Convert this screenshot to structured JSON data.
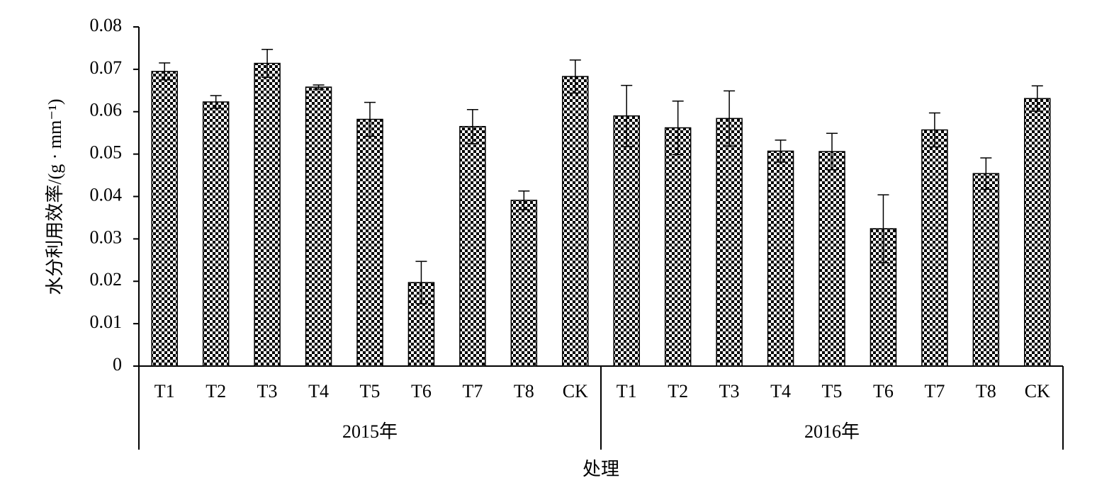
{
  "chart_data": {
    "type": "bar",
    "y_label": "水分利用效率/(g · mm⁻¹)",
    "x_label": "处理",
    "color": "#000000",
    "ylim": [
      0,
      0.08
    ],
    "yticks": [
      0,
      0.01,
      0.02,
      0.03,
      0.04,
      0.05,
      0.06,
      0.07,
      0.08
    ],
    "groups": [
      {
        "name": "2015年",
        "categories": [
          "T1",
          "T2",
          "T3",
          "T4",
          "T5",
          "T6",
          "T7",
          "T8",
          "CK"
        ],
        "values": [
          0.0695,
          0.0623,
          0.0714,
          0.0658,
          0.0582,
          0.0197,
          0.0565,
          0.0391,
          0.0683
        ],
        "errors": [
          0.002,
          0.0015,
          0.0033,
          0.0005,
          0.004,
          0.005,
          0.004,
          0.0022,
          0.0039
        ]
      },
      {
        "name": "2016年",
        "categories": [
          "T1",
          "T2",
          "T3",
          "T4",
          "T5",
          "T6",
          "T7",
          "T8",
          "CK"
        ],
        "values": [
          0.059,
          0.0562,
          0.0584,
          0.0507,
          0.0506,
          0.0324,
          0.0557,
          0.0454,
          0.0631
        ],
        "errors": [
          0.0072,
          0.0063,
          0.0065,
          0.0026,
          0.0043,
          0.008,
          0.004,
          0.0037,
          0.003
        ]
      }
    ]
  }
}
